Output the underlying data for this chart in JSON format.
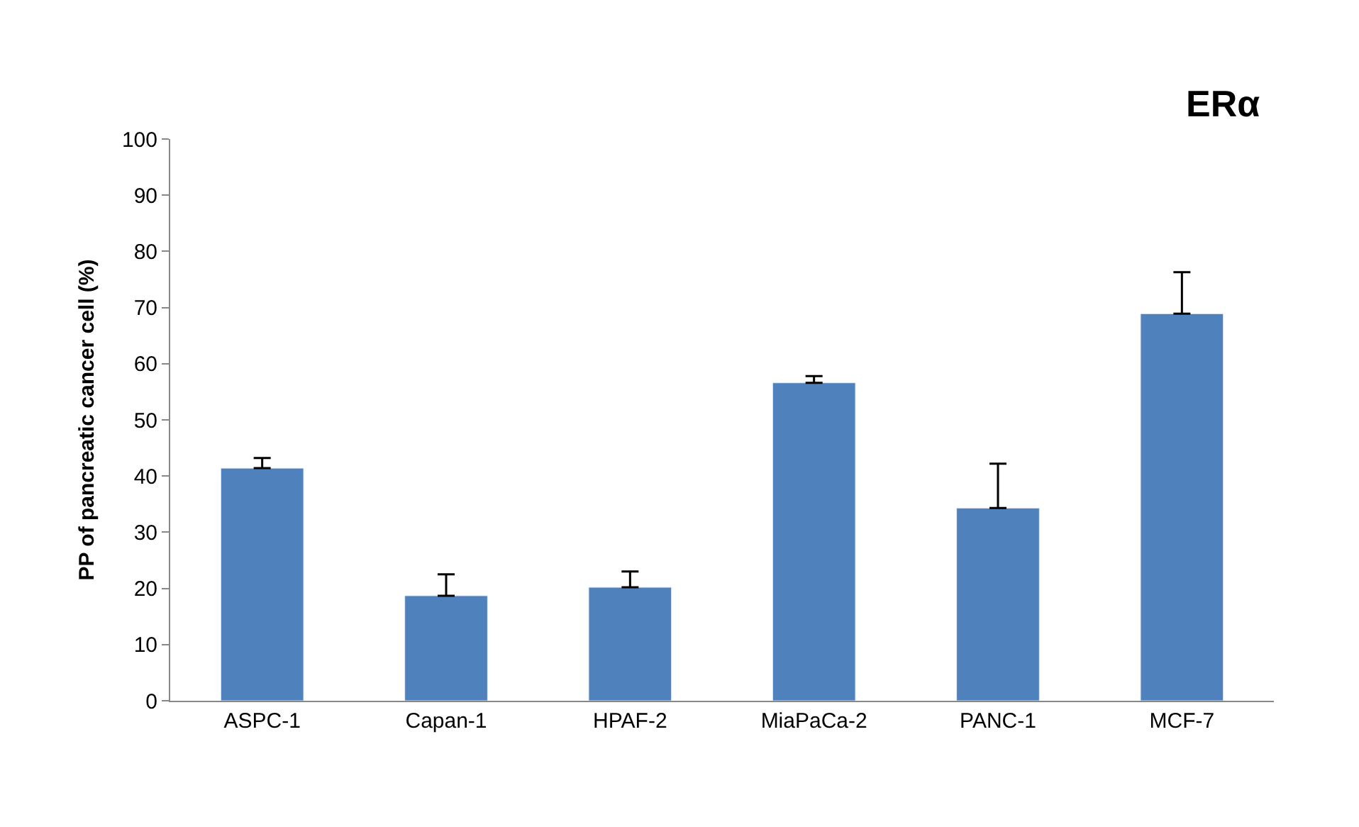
{
  "chart_data": {
    "type": "bar",
    "title": "ERα",
    "ylabel": "PP of pancreatic cancer cell (%)",
    "categories": [
      "ASPC-1",
      "Capan-1",
      "HPAF-2",
      "MiaPaCa-2",
      "PANC-1",
      "MCF-7"
    ],
    "values": [
      41.4,
      18.7,
      20.2,
      56.6,
      34.3,
      68.9
    ],
    "errors": [
      [
        41.4,
        43.2
      ],
      [
        18.7,
        22.5
      ],
      [
        20.2,
        23.0
      ],
      [
        56.6,
        57.8
      ],
      [
        34.3,
        42.2
      ],
      [
        68.9,
        76.3
      ]
    ],
    "color": "#4f81bd",
    "ylim": [
      0,
      100
    ],
    "yticks": [
      0,
      10,
      20,
      30,
      40,
      50,
      60,
      70,
      80,
      90,
      100
    ]
  }
}
